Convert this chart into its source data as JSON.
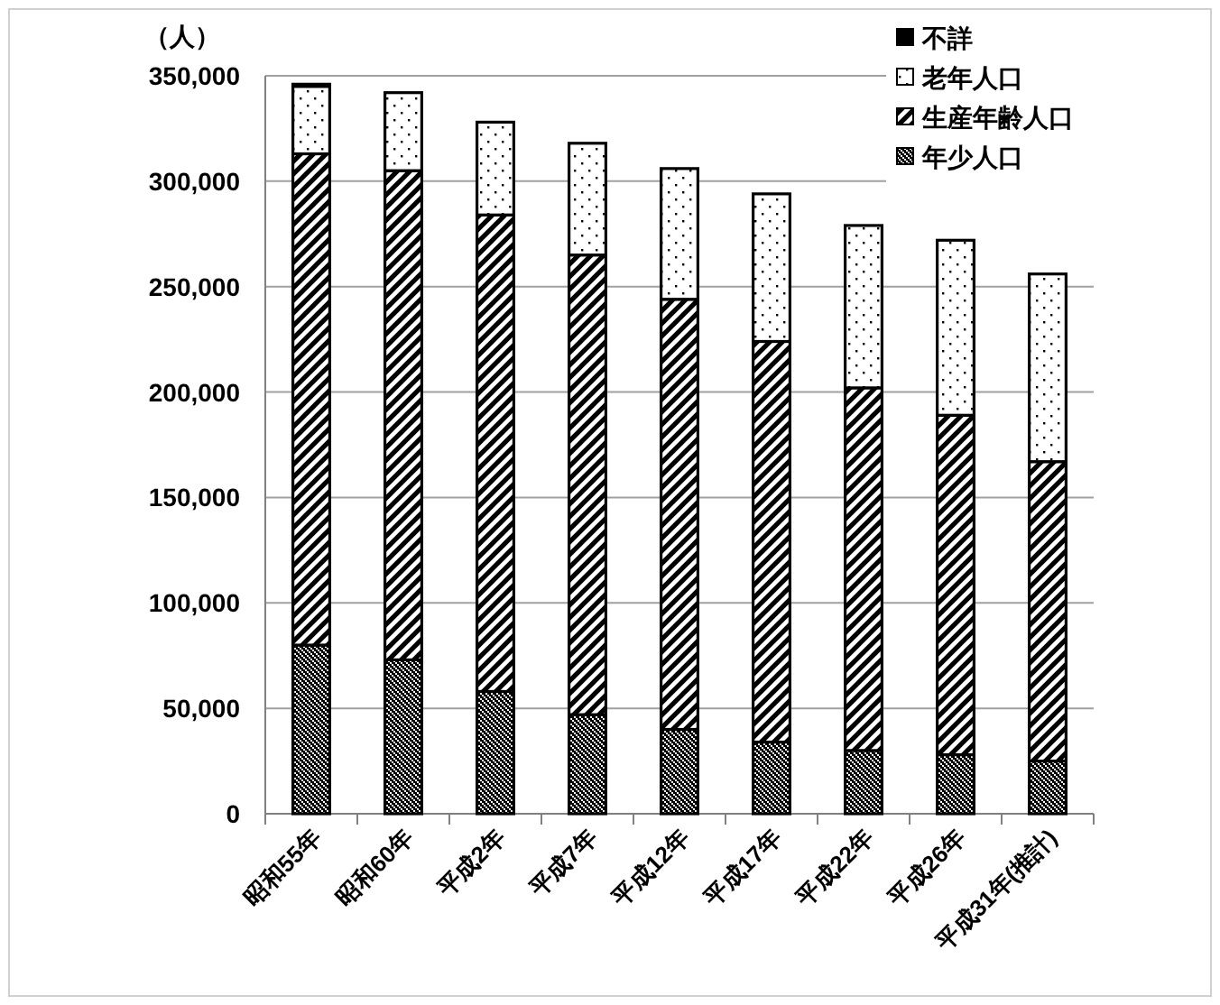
{
  "chart_data": {
    "type": "bar",
    "stacked": true,
    "ylabel": "（人）",
    "categories": [
      "昭和55年",
      "昭和60年",
      "平成2年",
      "平成7年",
      "平成12年",
      "平成17年",
      "平成22年",
      "平成26年",
      "平成31年(推計)"
    ],
    "series": [
      {
        "name": "年少人口",
        "color": "#000000",
        "values": [
          80000,
          73000,
          58000,
          47000,
          40000,
          34000,
          30000,
          28000,
          25000
        ]
      },
      {
        "name": "生産年齢人口",
        "color": "#000000",
        "values": [
          233000,
          232000,
          226000,
          218000,
          204000,
          190000,
          172000,
          161000,
          142000
        ]
      },
      {
        "name": "老年人口",
        "color": "#000000",
        "values": [
          32000,
          37000,
          44000,
          53000,
          62000,
          70000,
          77000,
          83000,
          89000
        ]
      },
      {
        "name": "不詳",
        "color": "#000000",
        "values": [
          1000,
          0,
          0,
          0,
          0,
          0,
          0,
          0,
          0
        ]
      }
    ],
    "ylim": [
      0,
      350000
    ],
    "yticks": [
      {
        "value": 0,
        "label": "0"
      },
      {
        "value": 50000,
        "label": "50,000"
      },
      {
        "value": 100000,
        "label": "100,000"
      },
      {
        "value": 150000,
        "label": "150,000"
      },
      {
        "value": 200000,
        "label": "200,000"
      },
      {
        "value": 250000,
        "label": "250,000"
      },
      {
        "value": 300000,
        "label": "300,000"
      },
      {
        "value": 350000,
        "label": "350,000"
      }
    ],
    "grid": "y",
    "legend": "top right"
  }
}
